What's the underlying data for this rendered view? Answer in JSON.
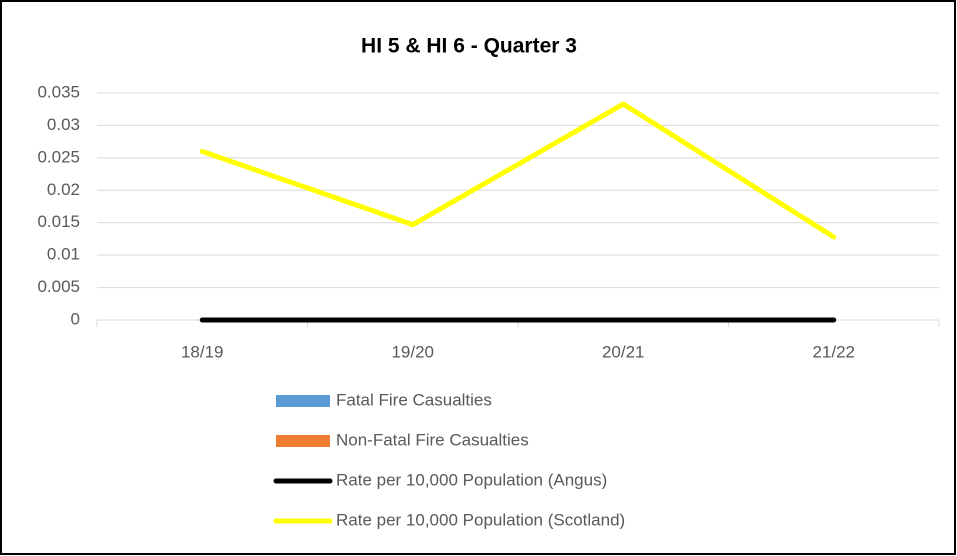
{
  "chart_data": {
    "type": "line",
    "title": "HI 5 & HI 6 - Quarter 3",
    "categories": [
      "18/19",
      "19/20",
      "20/21",
      "21/22"
    ],
    "series": [
      {
        "name": "Fatal Fire Casualties",
        "type": "bar",
        "color": "#5b9bd5",
        "values": [
          0,
          0,
          0,
          0
        ]
      },
      {
        "name": "Non-Fatal Fire Casualties",
        "type": "bar",
        "color": "#ed7d31",
        "values": [
          0,
          0,
          0,
          0
        ]
      },
      {
        "name": "Rate per 10,000 Population (Angus)",
        "type": "line",
        "color": "#000000",
        "values": [
          0,
          0,
          0,
          0
        ]
      },
      {
        "name": "Rate per 10,000 Population (Scotland)",
        "type": "line",
        "color": "#ffff00",
        "values": [
          0.026,
          0.0147,
          0.0333,
          0.0128
        ]
      }
    ],
    "ylim": [
      0,
      0.035
    ],
    "yticks": [
      0,
      0.005,
      0.01,
      0.015,
      0.02,
      0.025,
      0.03,
      0.035
    ],
    "grid": true,
    "legend": "bottom"
  }
}
